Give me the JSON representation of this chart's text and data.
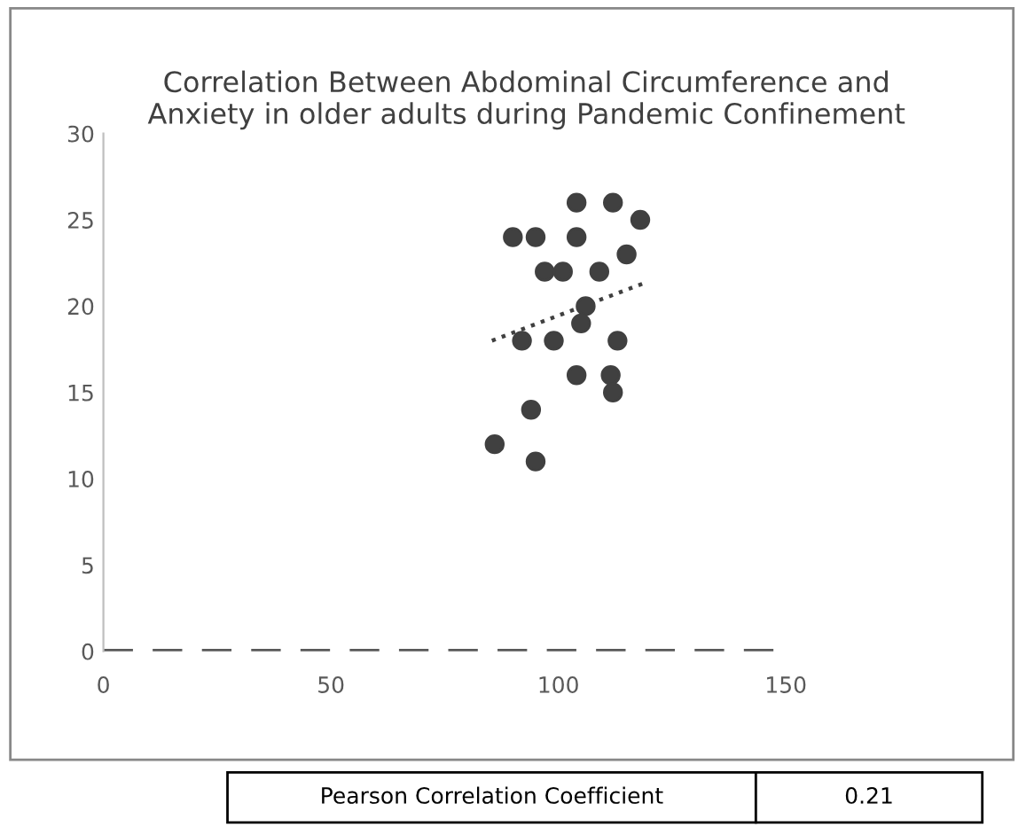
{
  "chart_data": {
    "type": "scatter",
    "title": "Correlation Between Abdominal Circumference and\nAnxiety in older adults during Pandemic Confinement",
    "xlim": [
      0,
      150
    ],
    "xticks": [
      0,
      50,
      100,
      150
    ],
    "ylim": [
      0,
      30
    ],
    "yticks": [
      0,
      5,
      10,
      15,
      20,
      25,
      30
    ],
    "grid": false,
    "legend": false,
    "series": [
      {
        "color": "#404040",
        "marker": "circle",
        "x": [
          104,
          112,
          118,
          90,
          95,
          104,
          115,
          97,
          101,
          109,
          106,
          105,
          92,
          99,
          113,
          104,
          111.5,
          112,
          94,
          86,
          95
        ],
        "values": [
          26,
          26,
          25,
          24,
          24,
          24,
          23,
          22,
          22,
          22,
          20,
          19,
          18,
          18,
          18,
          16,
          16,
          15,
          14,
          12,
          11
        ]
      },
      {
        "type": "line",
        "line_style": "dotted",
        "color": "#404040",
        "x": [
          85.4,
          118.5
        ],
        "values": [
          18,
          21.3
        ]
      }
    ],
    "ref_lines": [
      {
        "axis": "y",
        "value": 0,
        "color": "#595959",
        "line_style": "dashed"
      }
    ],
    "annotations": [
      "Pearson Correlation Coefficient",
      "0.21"
    ]
  }
}
